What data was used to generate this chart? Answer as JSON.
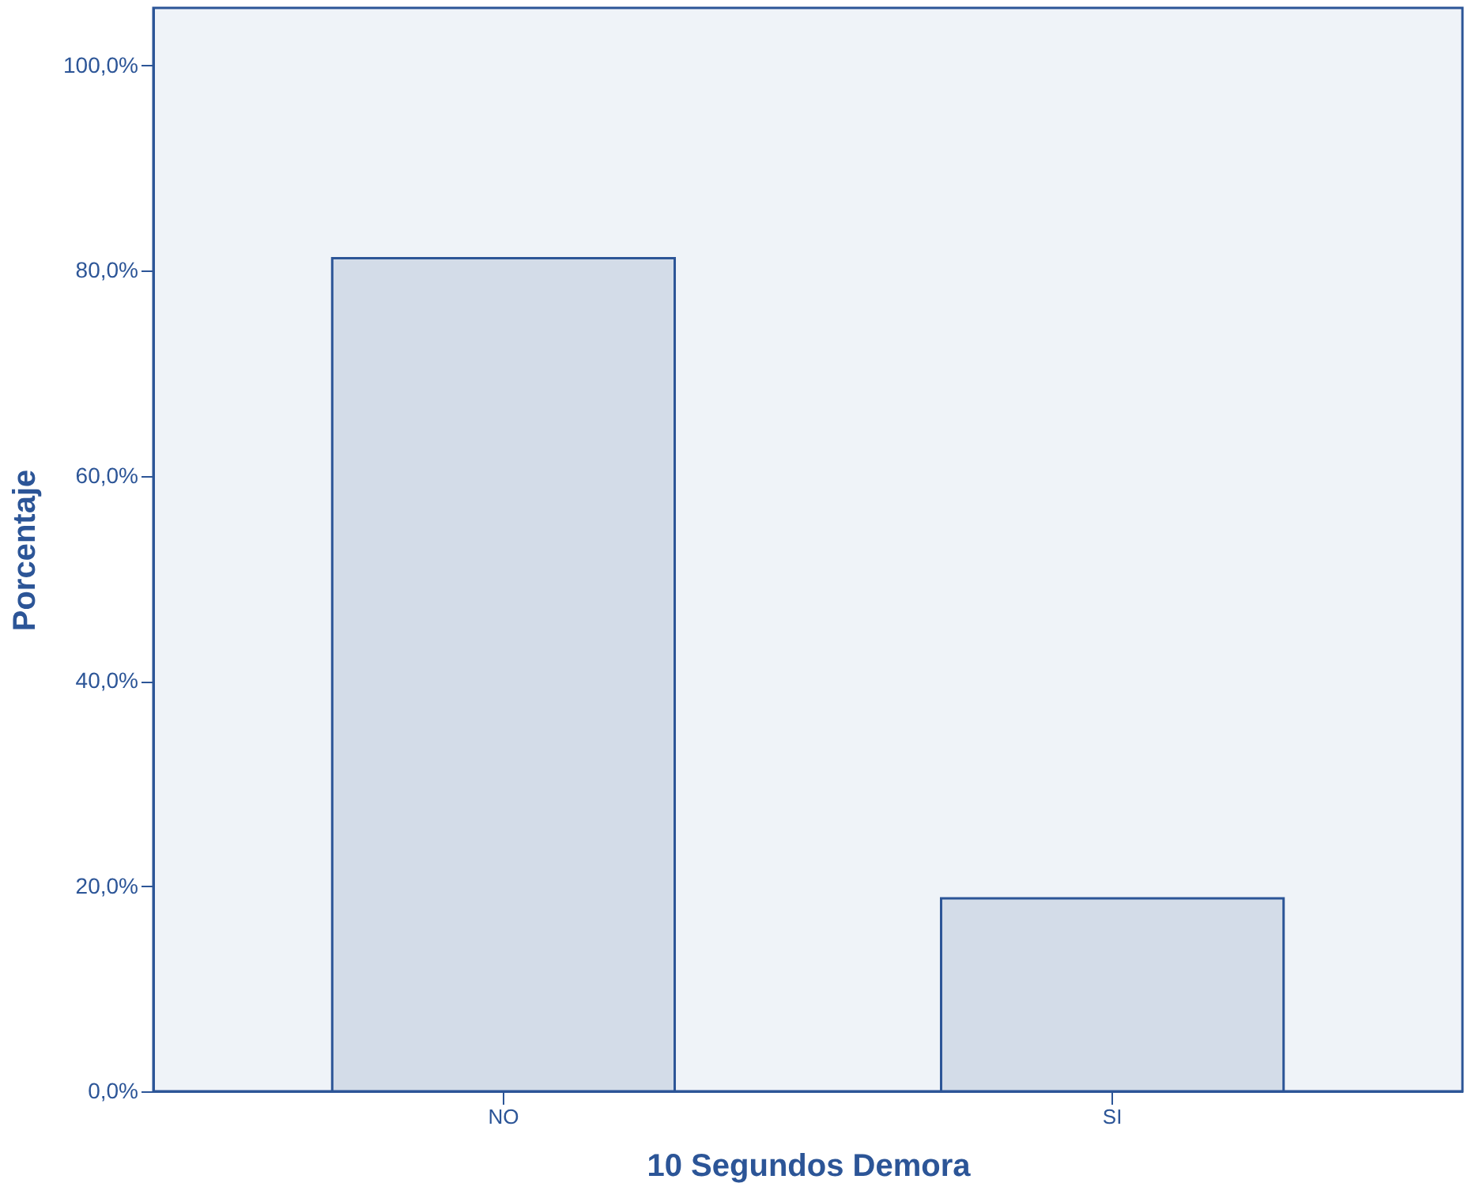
{
  "chart_data": {
    "type": "bar",
    "xlabel": "10 Segundos Demora",
    "ylabel": "Porcentaje",
    "categories": [
      "NO",
      "SI"
    ],
    "values": [
      81.2,
      18.8
    ],
    "color": "#d3dce8",
    "ylim": [
      0,
      105.6
    ],
    "yticks": [
      {
        "value": 0,
        "label": "0,0%"
      },
      {
        "value": 20,
        "label": "20,0%"
      },
      {
        "value": 40,
        "label": "40,0%"
      },
      {
        "value": 60,
        "label": "60,0%"
      },
      {
        "value": 80,
        "label": "80,0%"
      },
      {
        "value": 100,
        "label": "100,0%"
      }
    ],
    "grid": false
  }
}
